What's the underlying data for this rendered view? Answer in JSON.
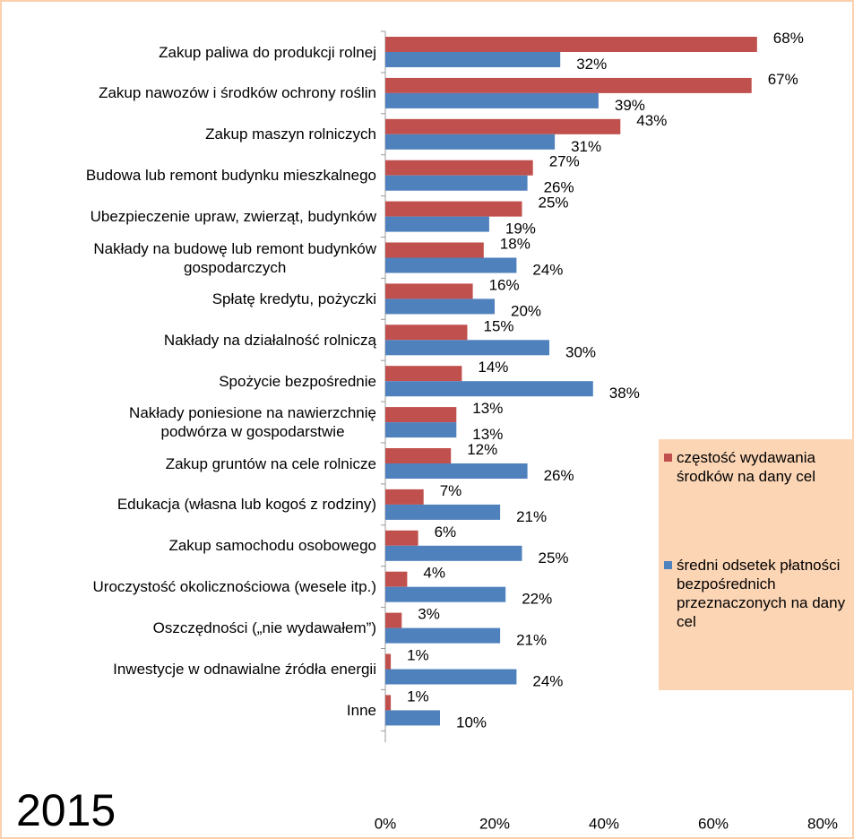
{
  "chart_data": {
    "type": "hbar",
    "annotation": "2015",
    "categories": [
      "Zakup paliwa do produkcji rolnej",
      "Zakup nawozów i środków ochrony roślin",
      "Zakup maszyn rolniczych",
      "Budowa lub remont budynku mieszkalnego",
      "Ubezpieczenie upraw, zwierząt, budynków",
      "Nakłady na budowę lub remont budynków\ngospodarczych",
      "Spłatę kredytu, pożyczki",
      "Nakłady na działalność rolniczą",
      "Spożycie bezpośrednie",
      "Nakłady poniesione na nawierzchnię\npodwórza w gospodarstwie",
      "Zakup gruntów na cele rolnicze",
      "Edukacja (własna lub kogoś z rodziny)",
      "Zakup samochodu osobowego",
      "Uroczystość okolicznościowa (wesele itp.)",
      "Oszczędności („nie wydawałem”)",
      "Inwestycje w odnawialne źródła energii",
      "Inne"
    ],
    "series": [
      {
        "name": "częstość wydawania środków na dany cel",
        "color": "#c0504d",
        "values": [
          68,
          67,
          43,
          27,
          25,
          18,
          16,
          15,
          14,
          13,
          12,
          7,
          6,
          4,
          3,
          1,
          1
        ],
        "value_labels": [
          "68%",
          "67%",
          "43%",
          "27%",
          "25%",
          "18%",
          "16%",
          "15%",
          "14%",
          "13%",
          "12%",
          "7%",
          "6%",
          "4%",
          "3%",
          "1%",
          "1%"
        ]
      },
      {
        "name": "średni odsetek płatności bezpośrednich przeznaczonych na dany cel",
        "color": "#4f81bd",
        "values": [
          32,
          39,
          31,
          26,
          19,
          24,
          20,
          30,
          38,
          13,
          26,
          21,
          25,
          22,
          21,
          24,
          10
        ],
        "value_labels": [
          "32%",
          "39%",
          "31%",
          "26%",
          "19%",
          "24%",
          "20%",
          "30%",
          "38%",
          "13%",
          "26%",
          "21%",
          "25%",
          "22%",
          "21%",
          "24%",
          "10%"
        ]
      }
    ],
    "xlim": [
      0,
      80
    ],
    "xticks": [
      {
        "value": 0,
        "label": "0%"
      },
      {
        "value": 20,
        "label": "20%"
      },
      {
        "value": 40,
        "label": "40%"
      },
      {
        "value": 60,
        "label": "60%"
      },
      {
        "value": 80,
        "label": "80%"
      }
    ],
    "legend": "right",
    "legend_color": "#fcd5b5"
  }
}
